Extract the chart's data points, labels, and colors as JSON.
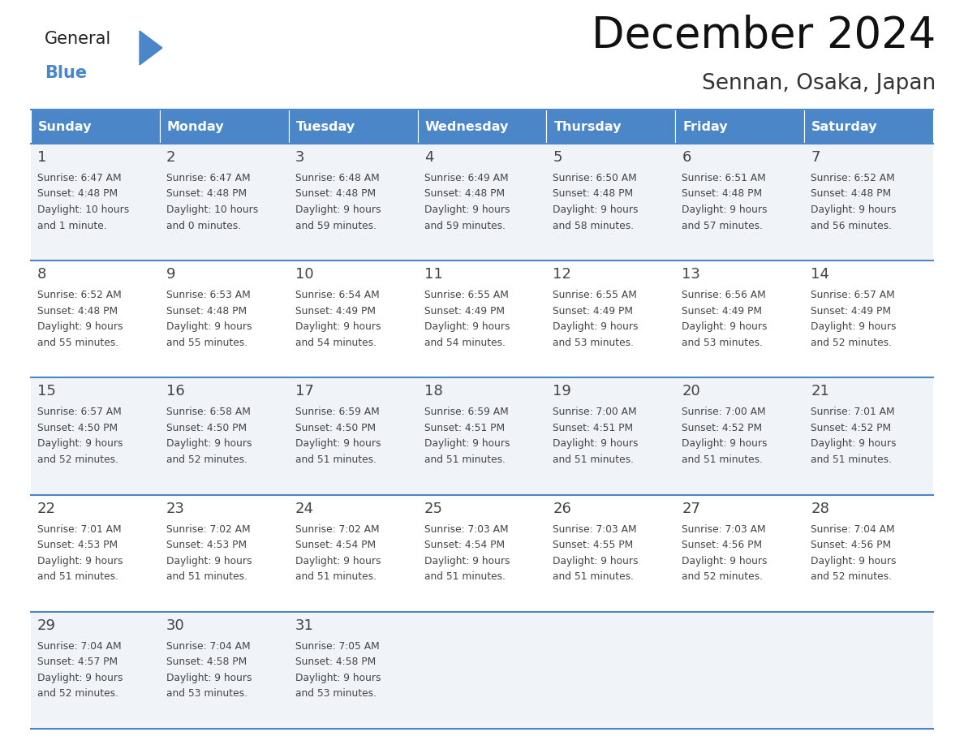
{
  "title": "December 2024",
  "subtitle": "Sennan, Osaka, Japan",
  "header_color": "#4a86c8",
  "header_text_color": "#ffffff",
  "cell_bg_even": "#f0f4f8",
  "cell_bg_odd": "#ffffff",
  "text_color": "#444444",
  "line_color": "#4a86c8",
  "days_of_week": [
    "Sunday",
    "Monday",
    "Tuesday",
    "Wednesday",
    "Thursday",
    "Friday",
    "Saturday"
  ],
  "calendar_data": [
    [
      {
        "day": 1,
        "sunrise": "6:47 AM",
        "sunset": "4:48 PM",
        "daylight_h": "10 hours",
        "daylight_m": "and 1 minute."
      },
      {
        "day": 2,
        "sunrise": "6:47 AM",
        "sunset": "4:48 PM",
        "daylight_h": "10 hours",
        "daylight_m": "and 0 minutes."
      },
      {
        "day": 3,
        "sunrise": "6:48 AM",
        "sunset": "4:48 PM",
        "daylight_h": "9 hours",
        "daylight_m": "and 59 minutes."
      },
      {
        "day": 4,
        "sunrise": "6:49 AM",
        "sunset": "4:48 PM",
        "daylight_h": "9 hours",
        "daylight_m": "and 59 minutes."
      },
      {
        "day": 5,
        "sunrise": "6:50 AM",
        "sunset": "4:48 PM",
        "daylight_h": "9 hours",
        "daylight_m": "and 58 minutes."
      },
      {
        "day": 6,
        "sunrise": "6:51 AM",
        "sunset": "4:48 PM",
        "daylight_h": "9 hours",
        "daylight_m": "and 57 minutes."
      },
      {
        "day": 7,
        "sunrise": "6:52 AM",
        "sunset": "4:48 PM",
        "daylight_h": "9 hours",
        "daylight_m": "and 56 minutes."
      }
    ],
    [
      {
        "day": 8,
        "sunrise": "6:52 AM",
        "sunset": "4:48 PM",
        "daylight_h": "9 hours",
        "daylight_m": "and 55 minutes."
      },
      {
        "day": 9,
        "sunrise": "6:53 AM",
        "sunset": "4:48 PM",
        "daylight_h": "9 hours",
        "daylight_m": "and 55 minutes."
      },
      {
        "day": 10,
        "sunrise": "6:54 AM",
        "sunset": "4:49 PM",
        "daylight_h": "9 hours",
        "daylight_m": "and 54 minutes."
      },
      {
        "day": 11,
        "sunrise": "6:55 AM",
        "sunset": "4:49 PM",
        "daylight_h": "9 hours",
        "daylight_m": "and 54 minutes."
      },
      {
        "day": 12,
        "sunrise": "6:55 AM",
        "sunset": "4:49 PM",
        "daylight_h": "9 hours",
        "daylight_m": "and 53 minutes."
      },
      {
        "day": 13,
        "sunrise": "6:56 AM",
        "sunset": "4:49 PM",
        "daylight_h": "9 hours",
        "daylight_m": "and 53 minutes."
      },
      {
        "day": 14,
        "sunrise": "6:57 AM",
        "sunset": "4:49 PM",
        "daylight_h": "9 hours",
        "daylight_m": "and 52 minutes."
      }
    ],
    [
      {
        "day": 15,
        "sunrise": "6:57 AM",
        "sunset": "4:50 PM",
        "daylight_h": "9 hours",
        "daylight_m": "and 52 minutes."
      },
      {
        "day": 16,
        "sunrise": "6:58 AM",
        "sunset": "4:50 PM",
        "daylight_h": "9 hours",
        "daylight_m": "and 52 minutes."
      },
      {
        "day": 17,
        "sunrise": "6:59 AM",
        "sunset": "4:50 PM",
        "daylight_h": "9 hours",
        "daylight_m": "and 51 minutes."
      },
      {
        "day": 18,
        "sunrise": "6:59 AM",
        "sunset": "4:51 PM",
        "daylight_h": "9 hours",
        "daylight_m": "and 51 minutes."
      },
      {
        "day": 19,
        "sunrise": "7:00 AM",
        "sunset": "4:51 PM",
        "daylight_h": "9 hours",
        "daylight_m": "and 51 minutes."
      },
      {
        "day": 20,
        "sunrise": "7:00 AM",
        "sunset": "4:52 PM",
        "daylight_h": "9 hours",
        "daylight_m": "and 51 minutes."
      },
      {
        "day": 21,
        "sunrise": "7:01 AM",
        "sunset": "4:52 PM",
        "daylight_h": "9 hours",
        "daylight_m": "and 51 minutes."
      }
    ],
    [
      {
        "day": 22,
        "sunrise": "7:01 AM",
        "sunset": "4:53 PM",
        "daylight_h": "9 hours",
        "daylight_m": "and 51 minutes."
      },
      {
        "day": 23,
        "sunrise": "7:02 AM",
        "sunset": "4:53 PM",
        "daylight_h": "9 hours",
        "daylight_m": "and 51 minutes."
      },
      {
        "day": 24,
        "sunrise": "7:02 AM",
        "sunset": "4:54 PM",
        "daylight_h": "9 hours",
        "daylight_m": "and 51 minutes."
      },
      {
        "day": 25,
        "sunrise": "7:03 AM",
        "sunset": "4:54 PM",
        "daylight_h": "9 hours",
        "daylight_m": "and 51 minutes."
      },
      {
        "day": 26,
        "sunrise": "7:03 AM",
        "sunset": "4:55 PM",
        "daylight_h": "9 hours",
        "daylight_m": "and 51 minutes."
      },
      {
        "day": 27,
        "sunrise": "7:03 AM",
        "sunset": "4:56 PM",
        "daylight_h": "9 hours",
        "daylight_m": "and 52 minutes."
      },
      {
        "day": 28,
        "sunrise": "7:04 AM",
        "sunset": "4:56 PM",
        "daylight_h": "9 hours",
        "daylight_m": "and 52 minutes."
      }
    ],
    [
      {
        "day": 29,
        "sunrise": "7:04 AM",
        "sunset": "4:57 PM",
        "daylight_h": "9 hours",
        "daylight_m": "and 52 minutes."
      },
      {
        "day": 30,
        "sunrise": "7:04 AM",
        "sunset": "4:58 PM",
        "daylight_h": "9 hours",
        "daylight_m": "and 53 minutes."
      },
      {
        "day": 31,
        "sunrise": "7:05 AM",
        "sunset": "4:58 PM",
        "daylight_h": "9 hours",
        "daylight_m": "and 53 minutes."
      },
      null,
      null,
      null,
      null
    ]
  ],
  "logo_triangle_color": "#4a86c8",
  "fig_width": 11.88,
  "fig_height": 9.18,
  "dpi": 100
}
